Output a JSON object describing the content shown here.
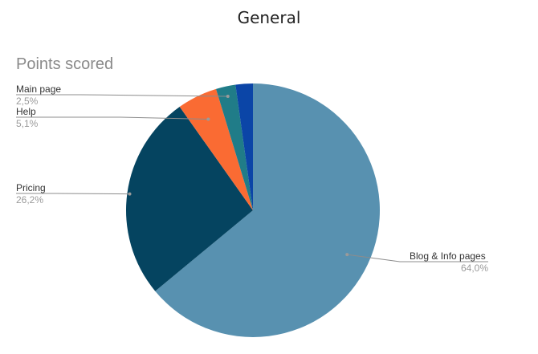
{
  "header": {
    "title": "General"
  },
  "chart_data": {
    "type": "pie",
    "title": "Points scored",
    "slices": [
      {
        "label": "Blog & Info pages",
        "value": 64.0,
        "percent_label": "64,0%",
        "color": "#5891b0"
      },
      {
        "label": "Pricing",
        "value": 26.2,
        "percent_label": "26,2%",
        "color": "#054460"
      },
      {
        "label": "Help",
        "value": 5.1,
        "percent_label": "5,1%",
        "color": "#fa6b33"
      },
      {
        "label": "Main page",
        "value": 2.5,
        "percent_label": "2,5%",
        "color": "#207c88"
      },
      {
        "label": "",
        "value": 2.2,
        "percent_label": "",
        "color": "#0b45a7"
      }
    ],
    "legend": "none",
    "grid": false
  }
}
